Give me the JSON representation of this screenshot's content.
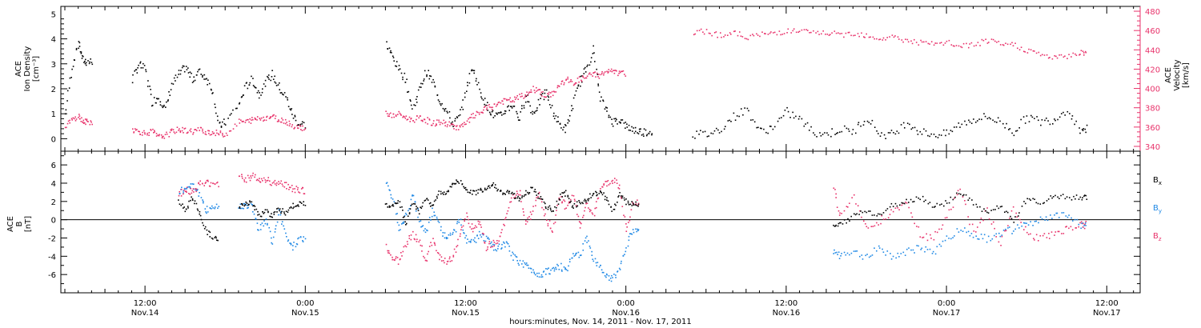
{
  "colors": {
    "black": "#000000",
    "red": "#e8336b",
    "blue": "#1e88e5"
  },
  "x_axis": {
    "title": "hours:minutes, Nov. 14, 2011 - Nov. 17, 2011",
    "ticks": [
      {
        "time": "12:00",
        "day": "Nov.14",
        "hours": 12
      },
      {
        "time": "0:00",
        "day": "Nov.15",
        "hours": 24
      },
      {
        "time": "12:00",
        "day": "Nov.15",
        "hours": 36
      },
      {
        "time": "0:00",
        "day": "Nov.16",
        "hours": 48
      },
      {
        "time": "12:00",
        "day": "Nov.16",
        "hours": 60
      },
      {
        "time": "0:00",
        "day": "Nov.17",
        "hours": 72
      },
      {
        "time": "12:00",
        "day": "Nov.17",
        "hours": 84
      }
    ]
  },
  "top_panel": {
    "left_label": [
      "ACE",
      "Ion Density",
      "[cm⁻³]"
    ],
    "right_label": [
      "ACE",
      "Velocity",
      "[km/s]"
    ]
  },
  "bottom_panel": {
    "left_label": [
      "ACE",
      "B",
      "[nT]"
    ],
    "legend": [
      {
        "base": "B",
        "sub": "x",
        "color": "#000000"
      },
      {
        "base": "B",
        "sub": "y",
        "color": "#1e88e5"
      },
      {
        "base": "B",
        "sub": "z",
        "color": "#e8336b"
      }
    ]
  },
  "chart_data": [
    {
      "type": "scatter",
      "title": "",
      "xlabel": "hours:minutes, Nov. 14, 2011 - Nov. 17, 2011",
      "x_units": "hours since Nov. 14 00:00",
      "xlim": [
        5.7,
        86.5
      ],
      "ylabel": "ACE Ion Density [cm-3]",
      "ylim": [
        -0.5,
        5.3
      ],
      "ytick_labels": [
        "0",
        "1",
        "2",
        "3",
        "4",
        "5"
      ],
      "y2label": "ACE Velocity [km/s]",
      "y2lim": [
        335,
        485
      ],
      "y2tick_labels": [
        "340",
        "360",
        "380",
        "400",
        "420",
        "440",
        "460",
        "480"
      ],
      "series": [
        {
          "name": "",
          "axis": "left",
          "color": "#000000",
          "x": [
            6.0,
            6.5,
            7.0,
            7.3,
            7.6,
            11.0,
            11.5,
            12.0,
            12.5,
            13.0,
            13.5,
            14.0,
            14.5,
            15.0,
            15.5,
            16.0,
            16.5,
            17.0,
            17.5,
            18.0,
            19.0,
            19.5,
            20.0,
            20.5,
            21.0,
            21.5,
            22.0,
            22.5,
            23.0,
            23.5,
            30.0,
            30.5,
            31.0,
            31.5,
            32.0,
            32.5,
            33.0,
            33.5,
            34.0,
            34.5,
            35.0,
            35.5,
            36.0,
            36.5,
            37.0,
            37.5,
            38.0,
            38.5,
            39.0,
            39.5,
            40.0,
            40.5,
            41.0,
            41.5,
            42.0,
            42.5,
            43.0,
            43.5,
            44.0,
            44.5,
            45.0,
            45.5,
            46.0,
            46.5,
            47.0,
            47.5,
            48.0,
            48.5,
            49.0,
            49.5,
            53.0,
            54.0,
            55.0,
            56.0,
            57.0,
            58.0,
            59.0,
            60.0,
            61.0,
            62.0,
            63.0,
            64.0,
            65.0,
            66.0,
            67.0,
            68.0,
            69.0,
            70.0,
            71.0,
            72.0,
            73.0,
            74.0,
            75.0,
            76.0,
            77.0,
            78.0,
            79.0,
            80.0,
            81.0,
            82.0
          ],
          "y": [
            1.0,
            2.9,
            3.9,
            3.2,
            3.1,
            2.4,
            3.0,
            2.8,
            1.5,
            1.7,
            1.2,
            2.2,
            2.6,
            2.9,
            2.4,
            2.7,
            2.5,
            2.0,
            0.5,
            0.7,
            1.4,
            2.1,
            2.4,
            1.8,
            2.3,
            2.6,
            2.1,
            1.7,
            1.0,
            0.6,
            3.8,
            3.3,
            2.8,
            2.4,
            1.2,
            2.0,
            2.7,
            2.3,
            1.6,
            1.2,
            0.6,
            0.9,
            2.0,
            2.9,
            2.0,
            1.4,
            1.0,
            0.9,
            1.2,
            1.4,
            0.8,
            1.8,
            1.0,
            1.5,
            1.9,
            1.1,
            0.6,
            0.4,
            1.4,
            2.3,
            2.8,
            3.6,
            1.8,
            1.1,
            0.7,
            0.8,
            0.5,
            0.4,
            0.3,
            0.3,
            0.2,
            0.2,
            0.4,
            0.9,
            1.2,
            0.3,
            0.5,
            1.1,
            0.8,
            0.3,
            0.2,
            0.4,
            0.3,
            0.9,
            0.2,
            0.2,
            0.7,
            0.3,
            0.2,
            0.2,
            0.6,
            0.8,
            0.9,
            0.7,
            0.3,
            0.9,
            0.7,
            0.8,
            1.2,
            0.4
          ]
        },
        {
          "name": "",
          "axis": "right",
          "color": "#e8336b",
          "x": [
            6.0,
            6.5,
            7.0,
            7.3,
            7.6,
            11.0,
            11.5,
            12.0,
            12.5,
            13.0,
            13.5,
            14.0,
            14.5,
            15.0,
            15.5,
            16.0,
            16.5,
            17.0,
            17.5,
            18.0,
            19.0,
            19.5,
            20.0,
            20.5,
            21.0,
            21.5,
            22.0,
            22.5,
            23.0,
            23.5,
            30.0,
            30.5,
            31.0,
            31.5,
            32.0,
            32.5,
            33.0,
            33.5,
            34.0,
            34.5,
            35.0,
            35.5,
            36.0,
            36.5,
            37.0,
            37.5,
            38.0,
            38.5,
            39.0,
            39.5,
            40.0,
            40.5,
            41.0,
            41.5,
            42.0,
            42.5,
            43.0,
            43.5,
            44.0,
            44.5,
            45.0,
            45.5,
            46.0,
            46.5,
            47.0,
            47.5,
            53.0,
            54.0,
            55.0,
            56.0,
            57.0,
            58.0,
            59.0,
            60.0,
            61.0,
            62.0,
            63.0,
            64.0,
            65.0,
            66.0,
            67.0,
            68.0,
            69.0,
            70.0,
            71.0,
            72.0,
            73.0,
            74.0,
            75.0,
            76.0,
            77.0,
            78.0,
            79.0,
            80.0,
            81.0,
            82.0
          ],
          "y": [
            362,
            368,
            372,
            366,
            366,
            358,
            356,
            354,
            356,
            350,
            352,
            356,
            358,
            357,
            356,
            358,
            356,
            355,
            354,
            353,
            366,
            366,
            368,
            370,
            370,
            372,
            368,
            367,
            362,
            360,
            375,
            372,
            374,
            370,
            368,
            370,
            368,
            364,
            366,
            364,
            362,
            360,
            364,
            372,
            375,
            380,
            382,
            386,
            388,
            388,
            392,
            394,
            400,
            398,
            392,
            396,
            404,
            410,
            406,
            410,
            412,
            416,
            414,
            418,
            418,
            416,
            458,
            460,
            456,
            458,
            454,
            456,
            458,
            460,
            460,
            458,
            458,
            456,
            458,
            456,
            452,
            454,
            450,
            448,
            446,
            448,
            444,
            446,
            450,
            446,
            446,
            440,
            436,
            432,
            434,
            438
          ]
        }
      ]
    },
    {
      "type": "scatter",
      "title": "",
      "xlabel": "hours:minutes, Nov. 14, 2011 - Nov. 17, 2011",
      "x_units": "hours since Nov. 14 00:00",
      "xlim": [
        5.7,
        86.5
      ],
      "ylabel": "ACE B [nT]",
      "ylim": [
        -8,
        7.5
      ],
      "ytick_labels": [
        "-6",
        "-4",
        "-2",
        "0",
        "2",
        "4",
        "6"
      ],
      "legend_position": "right",
      "series": [
        {
          "name": "Bx",
          "color": "#000000",
          "x": [
            14.5,
            15.0,
            15.5,
            16.0,
            16.5,
            17.0,
            19.0,
            19.5,
            20.0,
            20.5,
            21.0,
            21.5,
            22.0,
            22.5,
            23.0,
            23.5,
            30.0,
            30.5,
            31.0,
            31.5,
            32.0,
            32.5,
            33.0,
            33.5,
            34.0,
            34.5,
            35.0,
            35.5,
            36.0,
            36.5,
            37.0,
            37.5,
            38.0,
            38.5,
            39.0,
            39.5,
            40.0,
            40.5,
            41.0,
            41.5,
            42.0,
            42.5,
            43.0,
            43.5,
            44.0,
            44.5,
            45.0,
            45.5,
            46.0,
            46.5,
            47.0,
            47.5,
            48.0,
            48.5,
            63.5,
            64.0,
            65.0,
            66.0,
            67.0,
            68.0,
            69.0,
            70.0,
            71.0,
            72.0,
            73.0,
            74.0,
            75.0,
            76.0,
            77.0,
            78.0,
            79.0,
            80.0,
            81.0,
            82.0
          ],
          "y": [
            2.0,
            1.0,
            2.5,
            1.0,
            -1.0,
            -2.0,
            1.5,
            2.0,
            1.8,
            0.5,
            1.0,
            0.5,
            1.2,
            0.8,
            1.5,
            1.8,
            1.5,
            1.8,
            2.0,
            -0.5,
            2.0,
            1.0,
            2.5,
            1.5,
            3.0,
            3.0,
            4.0,
            4.2,
            3.5,
            3.0,
            3.2,
            3.5,
            4.0,
            3.2,
            3.0,
            2.8,
            2.2,
            3.0,
            3.5,
            2.5,
            1.5,
            1.0,
            2.5,
            3.0,
            1.5,
            2.0,
            2.2,
            3.0,
            3.0,
            2.5,
            1.0,
            3.0,
            2.0,
            1.8,
            -0.8,
            -0.5,
            0.5,
            1.0,
            0.5,
            1.8,
            2.0,
            2.5,
            1.5,
            2.0,
            3.0,
            1.8,
            0.8,
            1.5,
            0.0,
            2.5,
            2.0,
            2.8,
            2.5,
            2.5
          ]
        },
        {
          "name": "By",
          "color": "#1e88e5",
          "x": [
            14.5,
            15.0,
            15.5,
            16.0,
            16.5,
            17.0,
            19.0,
            19.5,
            20.0,
            20.5,
            21.0,
            21.5,
            22.0,
            22.5,
            23.0,
            23.5,
            30.0,
            30.5,
            31.0,
            31.5,
            32.0,
            32.5,
            33.0,
            33.5,
            34.0,
            34.5,
            35.0,
            35.5,
            36.0,
            36.5,
            37.0,
            37.5,
            38.0,
            38.5,
            39.0,
            39.5,
            40.0,
            40.5,
            41.0,
            41.5,
            42.0,
            42.5,
            43.0,
            43.5,
            44.0,
            44.5,
            45.0,
            45.5,
            46.0,
            46.5,
            47.0,
            47.5,
            48.0,
            48.5,
            63.5,
            64.0,
            65.0,
            66.0,
            67.0,
            68.0,
            69.0,
            70.0,
            71.0,
            72.0,
            73.0,
            74.0,
            75.0,
            76.0,
            77.0,
            78.0,
            79.0,
            80.0,
            81.0,
            82.0
          ],
          "y": [
            3.0,
            3.5,
            4.0,
            3.0,
            1.0,
            1.5,
            1.5,
            1.8,
            1.5,
            -1.0,
            0.0,
            -2.5,
            1.0,
            -1.5,
            -3.0,
            -2.0,
            4.0,
            2.5,
            -1.0,
            0.5,
            3.0,
            0.0,
            -1.5,
            1.0,
            -0.5,
            -2.0,
            -1.5,
            0.0,
            -2.0,
            -2.5,
            -1.5,
            -2.0,
            -3.0,
            -3.0,
            -2.5,
            -4.0,
            -4.5,
            -5.0,
            -5.5,
            -6.0,
            -5.5,
            -5.5,
            -5.0,
            -5.5,
            -3.5,
            -4.0,
            -2.0,
            -4.0,
            -5.0,
            -6.0,
            -6.5,
            -5.0,
            -3.0,
            -1.0,
            -3.5,
            -4.0,
            -3.5,
            -4.0,
            -3.0,
            -4.0,
            -3.5,
            -3.0,
            -3.5,
            -2.0,
            -1.0,
            -1.5,
            -2.0,
            -1.5,
            -1.0,
            -0.5,
            0.0,
            0.5,
            0.5,
            -0.5
          ]
        },
        {
          "name": "Bz",
          "color": "#e8336b",
          "x": [
            14.5,
            15.0,
            15.5,
            16.0,
            16.5,
            17.0,
            19.0,
            19.5,
            20.0,
            20.5,
            21.0,
            21.5,
            22.0,
            22.5,
            23.0,
            23.5,
            30.0,
            30.5,
            31.0,
            31.5,
            32.0,
            32.5,
            33.0,
            33.5,
            34.0,
            34.5,
            35.0,
            35.5,
            36.0,
            36.5,
            37.0,
            37.5,
            38.0,
            38.5,
            39.0,
            39.5,
            40.0,
            40.5,
            41.0,
            41.5,
            42.0,
            42.5,
            43.0,
            43.5,
            44.0,
            44.5,
            45.0,
            45.5,
            46.0,
            46.5,
            47.0,
            47.5,
            48.0,
            48.5,
            63.5,
            64.0,
            65.0,
            66.0,
            67.0,
            68.0,
            69.0,
            70.0,
            71.0,
            72.0,
            73.0,
            74.0,
            75.0,
            76.0,
            77.0,
            78.0,
            79.0,
            80.0,
            81.0,
            82.0
          ],
          "y": [
            2.8,
            3.5,
            3.0,
            3.8,
            4.2,
            4.0,
            4.8,
            4.5,
            4.8,
            4.5,
            4.5,
            4.2,
            4.0,
            3.8,
            3.5,
            3.2,
            -3.0,
            -4.0,
            -4.5,
            -2.5,
            -1.5,
            -2.5,
            -4.5,
            -2.0,
            -4.0,
            -4.5,
            -4.0,
            -2.0,
            0.5,
            -1.0,
            0.0,
            -3.0,
            -2.5,
            -2.0,
            0.5,
            2.5,
            3.0,
            -0.5,
            1.0,
            3.0,
            0.0,
            -1.0,
            2.5,
            1.5,
            3.0,
            -1.0,
            2.0,
            0.5,
            3.0,
            4.0,
            4.5,
            3.5,
            -1.0,
            2.0,
            3.5,
            0.5,
            2.5,
            -1.0,
            0.0,
            1.0,
            2.0,
            -1.5,
            -2.0,
            0.5,
            3.5,
            -1.5,
            1.0,
            -2.5,
            1.5,
            -1.5,
            -2.0,
            -1.5,
            -1.0,
            -0.5
          ]
        }
      ]
    }
  ]
}
